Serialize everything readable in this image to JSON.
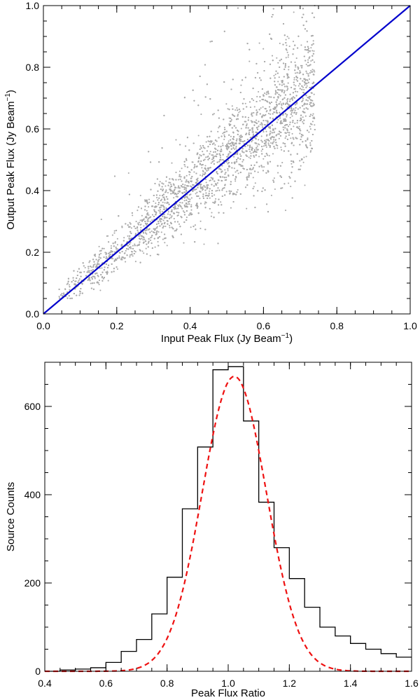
{
  "chart_data": [
    {
      "type": "scatter",
      "xlabel": "Input Peak Flux (Jy Beam",
      "xlabel_sup": "−1",
      "xlabel_tail": ")",
      "ylabel": "Output Peak Flux (Jy Beam",
      "ylabel_sup": "−1",
      "ylabel_tail": ")",
      "xlim": [
        0.0,
        1.0
      ],
      "ylim": [
        0.0,
        1.0
      ],
      "xticks": [
        "0.0",
        "0.2",
        "0.4",
        "0.6",
        "0.8",
        "1.0"
      ],
      "yticks": [
        "0.0",
        "0.2",
        "0.4",
        "0.6",
        "0.8",
        "1.0"
      ],
      "point_color": "#aaaaaa",
      "line_color": "#0000cc",
      "line": {
        "x": [
          0.0,
          1.0
        ],
        "y": [
          0.0,
          1.0
        ]
      },
      "points_summary": {
        "x_range": [
          0.04,
          0.74
        ],
        "relation": "y ≈ x",
        "scatter_width_fraction": 0.15,
        "count_approx": 6000
      }
    },
    {
      "type": "bar",
      "xlabel": "Peak Flux Ratio",
      "ylabel": "Source Counts",
      "xlim": [
        0.4,
        1.6
      ],
      "ylim": [
        0,
        700
      ],
      "xticks": [
        "0.4",
        "0.6",
        "0.8",
        "1.0",
        "1.2",
        "1.4",
        "1.6"
      ],
      "yticks": [
        "0",
        "200",
        "400",
        "600"
      ],
      "hist_color": "#000000",
      "fit_color": "#ee1111",
      "hist_edges": [
        0.4,
        0.45,
        0.5,
        0.55,
        0.6,
        0.65,
        0.7,
        0.75,
        0.8,
        0.85,
        0.9,
        0.95,
        1.0,
        1.05,
        1.1,
        1.15,
        1.2,
        1.25,
        1.3,
        1.35,
        1.4,
        1.45,
        1.5,
        1.55,
        1.6
      ],
      "hist_values": [
        0,
        3,
        5,
        8,
        20,
        45,
        72,
        130,
        213,
        368,
        508,
        683,
        690,
        567,
        383,
        280,
        210,
        145,
        100,
        80,
        63,
        50,
        40,
        32
      ],
      "fit": {
        "type": "gaussian",
        "peak": 668,
        "mean": 1.02,
        "sigma": 0.105
      }
    }
  ]
}
